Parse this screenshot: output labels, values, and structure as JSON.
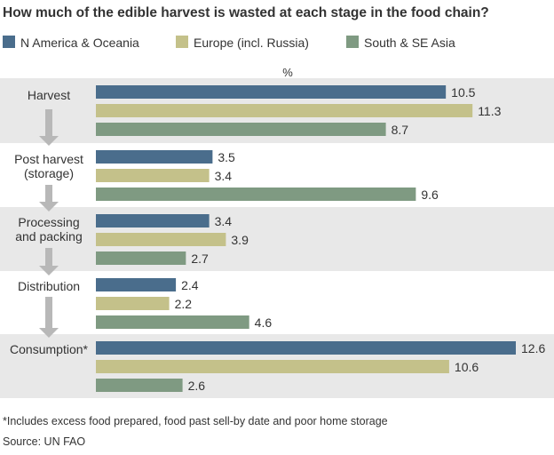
{
  "chart_data": {
    "type": "bar",
    "orientation": "horizontal",
    "title": "How much of the edible harvest is wasted at each stage in the food chain?",
    "unit": "%",
    "categories": [
      [
        "Harvest"
      ],
      [
        "Post harvest",
        "(storage)"
      ],
      [
        "Processing",
        "and packing"
      ],
      [
        "Distribution"
      ],
      [
        "Consumption*"
      ]
    ],
    "series": [
      {
        "name": "N America & Oceania",
        "color": "#4a6d8c",
        "values": [
          10.5,
          3.5,
          3.4,
          2.4,
          12.6
        ]
      },
      {
        "name": "Europe (incl. Russia)",
        "color": "#c4c18a",
        "values": [
          11.3,
          3.4,
          3.9,
          2.2,
          10.6
        ]
      },
      {
        "name": "South & SE Asia",
        "color": "#7f9a82",
        "values": [
          8.7,
          9.6,
          2.7,
          4.6,
          2.6
        ]
      }
    ],
    "xlim": [
      0,
      12.6
    ],
    "legend_position": "top",
    "footnote": "*Includes excess food prepared, food past sell-by date and poor home storage",
    "source": "Source: UN FAO"
  },
  "colors": {
    "band": "#e8e8e8",
    "arrow": "#b8b8b8",
    "text": "#333333"
  }
}
